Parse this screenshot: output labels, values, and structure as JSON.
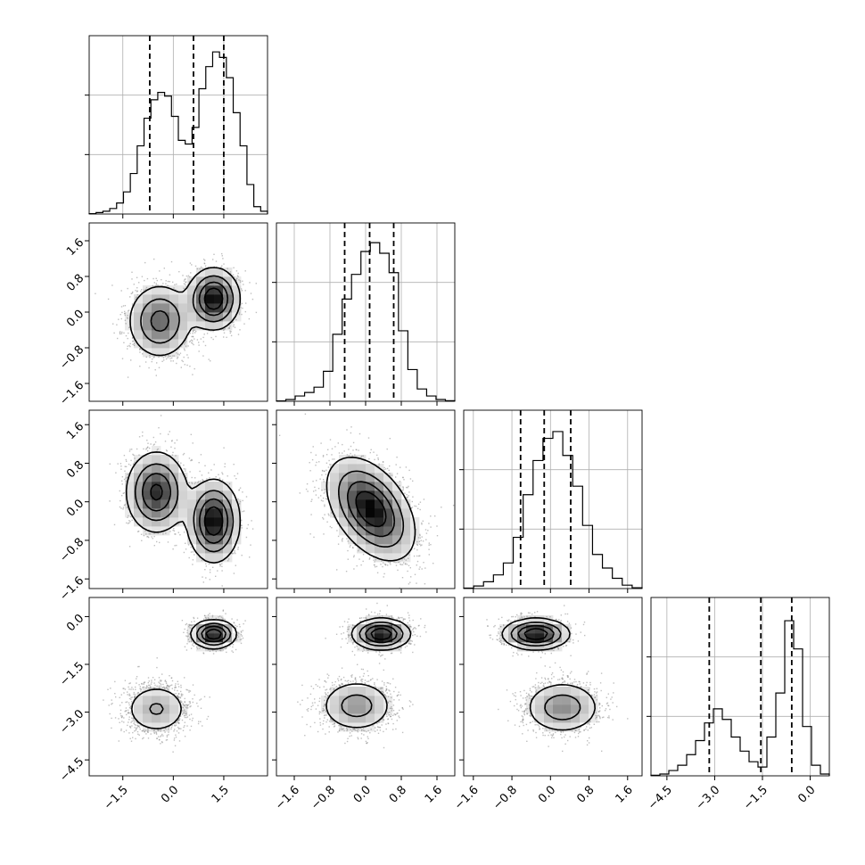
{
  "chart_data": {
    "type": "corner",
    "dims": 4,
    "diag": [
      {
        "range": [
          -2.5,
          2.8
        ],
        "ymax": 88,
        "xticks": [
          -1.5,
          0.0,
          1.5
        ],
        "counts": [
          0.2,
          0.8,
          1.5,
          3,
          6,
          12,
          22,
          37,
          52,
          62,
          66,
          64,
          53,
          40,
          38,
          47,
          68,
          80,
          88,
          85,
          74,
          55,
          37,
          16,
          4,
          1.5
        ],
        "q": [
          -0.7,
          0.6,
          1.5
        ]
      },
      {
        "range": [
          -2.0,
          2.0
        ],
        "ymax": 92,
        "xticks": [
          -1.6,
          -0.8,
          0.0,
          0.8,
          1.6
        ],
        "counts": [
          0.2,
          1,
          3,
          5,
          8,
          17,
          38,
          58,
          72,
          85,
          90,
          84,
          73,
          40,
          18,
          7,
          3,
          1,
          0.3
        ],
        "q": [
          -0.47,
          0.09,
          0.63
        ]
      },
      {
        "range": [
          -1.8,
          1.9
        ],
        "ymax": 95,
        "xticks": [
          -1.6,
          -0.8,
          0.0,
          0.8,
          1.6
        ],
        "counts": [
          0.3,
          1.5,
          4,
          8,
          15,
          30,
          55,
          75,
          88,
          92,
          78,
          60,
          37,
          20,
          12,
          6,
          2,
          0.5
        ],
        "q": [
          -0.62,
          -0.13,
          0.42
        ]
      },
      {
        "range": [
          -5.0,
          0.6
        ],
        "ymax": 92,
        "xticks": [
          -4.5,
          -3.0,
          -1.5,
          0.0
        ],
        "counts": [
          0.3,
          1,
          3,
          6,
          12,
          20,
          30,
          38,
          32,
          22,
          14,
          8,
          5,
          22,
          47,
          88,
          72,
          28,
          6,
          1
        ],
        "q": [
          -3.17,
          -1.55,
          -0.58
        ]
      }
    ],
    "pairs": [
      {
        "row": 1,
        "col": 0,
        "modes": [
          {
            "center": [
              -0.4,
              -0.2
            ],
            "spread": [
              0.48,
              0.42
            ],
            "rho": 0.0,
            "weight": 0.5
          },
          {
            "center": [
              1.2,
              0.3
            ],
            "spread": [
              0.38,
              0.34
            ],
            "rho": 0.0,
            "weight": 0.5
          }
        ]
      },
      {
        "row": 2,
        "col": 0,
        "modes": [
          {
            "center": [
              -0.5,
              0.2
            ],
            "spread": [
              0.45,
              0.42
            ],
            "rho": 0.0,
            "weight": 0.5
          },
          {
            "center": [
              1.2,
              -0.4
            ],
            "spread": [
              0.38,
              0.42
            ],
            "rho": 0.0,
            "weight": 0.5
          }
        ]
      },
      {
        "row": 2,
        "col": 1,
        "modes": [
          {
            "center": [
              0.12,
              -0.15
            ],
            "spread": [
              0.48,
              0.52
            ],
            "rho": -0.45,
            "weight": 1.0
          }
        ]
      },
      {
        "row": 3,
        "col": 0,
        "modes": [
          {
            "center": [
              1.2,
              -0.55
            ],
            "spread": [
              0.33,
              0.22
            ],
            "rho": 0.0,
            "weight": 0.5
          },
          {
            "center": [
              -0.5,
              -2.9
            ],
            "spread": [
              0.5,
              0.42
            ],
            "rho": 0.0,
            "weight": 0.5
          }
        ]
      },
      {
        "row": 3,
        "col": 1,
        "modes": [
          {
            "center": [
              0.35,
              -0.55
            ],
            "spread": [
              0.32,
              0.24
            ],
            "rho": 0.0,
            "weight": 0.5
          },
          {
            "center": [
              -0.2,
              -2.8
            ],
            "spread": [
              0.42,
              0.42
            ],
            "rho": 0.0,
            "weight": 0.5
          }
        ]
      },
      {
        "row": 3,
        "col": 2,
        "modes": [
          {
            "center": [
              -0.3,
              -0.55
            ],
            "spread": [
              0.34,
              0.24
            ],
            "rho": 0.0,
            "weight": 0.5
          },
          {
            "center": [
              0.25,
              -2.85
            ],
            "spread": [
              0.4,
              0.42
            ],
            "rho": 0.0,
            "weight": 0.5
          }
        ]
      }
    ]
  }
}
